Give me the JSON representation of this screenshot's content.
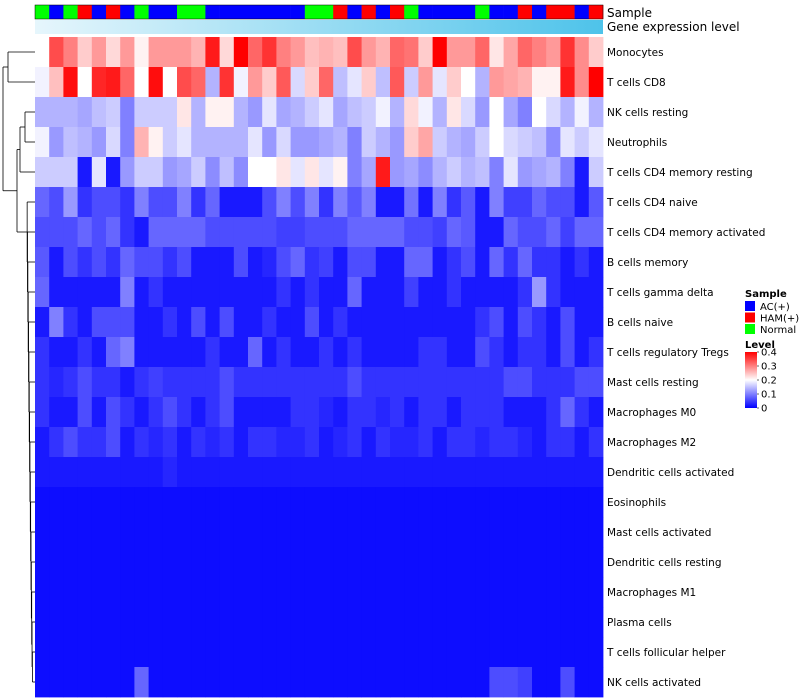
{
  "chart_data": {
    "type": "heatmap",
    "annotation_labels": [
      "Sample",
      "Gene expression level"
    ],
    "sample_groups": [
      "Normal",
      "AC(+)",
      "Normal",
      "HAM(+)",
      "AC(+)",
      "HAM(+)",
      "AC(+)",
      "Normal",
      "AC(+)",
      "AC(+)",
      "Normal",
      "Normal",
      "AC(+)",
      "AC(+)",
      "AC(+)",
      "AC(+)",
      "AC(+)",
      "AC(+)",
      "AC(+)",
      "Normal",
      "Normal",
      "HAM(+)",
      "AC(+)",
      "HAM(+)",
      "AC(+)",
      "HAM(+)",
      "Normal",
      "AC(+)",
      "AC(+)",
      "AC(+)",
      "AC(+)",
      "Normal",
      "AC(+)",
      "AC(+)",
      "HAM(+)",
      "AC(+)",
      "HAM(+)",
      "HAM(+)",
      "AC(+)",
      "HAM(+)"
    ],
    "legend": {
      "sample_title": "Sample",
      "groups": [
        {
          "label": "AC(+)",
          "color": "#0000ff"
        },
        {
          "label": "HAM(+)",
          "color": "#ff0000"
        },
        {
          "label": "Normal",
          "color": "#00ff00"
        }
      ],
      "level_title": "Level",
      "ticks": [
        "0.4",
        "0.3",
        "0.2",
        "0.1",
        "0"
      ]
    },
    "color_scale": {
      "min": 0,
      "mid": 0.2,
      "max": 0.4,
      "low": "#0000ff",
      "midcolor": "#ffffff",
      "high": "#ff0000"
    },
    "rows": [
      {
        "label": "Monocytes",
        "values": [
          0.2,
          0.34,
          0.3,
          0.24,
          0.28,
          0.23,
          0.28,
          0.21,
          0.28,
          0.28,
          0.28,
          0.26,
          0.38,
          0.23,
          0.4,
          0.32,
          0.36,
          0.3,
          0.28,
          0.25,
          0.26,
          0.25,
          0.34,
          0.28,
          0.26,
          0.32,
          0.31,
          0.24,
          0.4,
          0.28,
          0.28,
          0.32,
          0.22,
          0.27,
          0.32,
          0.3,
          0.28,
          0.36,
          0.29,
          0.24
        ]
      },
      {
        "label": "T cells CD8",
        "values": [
          0.19,
          0.25,
          0.39,
          0.2,
          0.37,
          0.38,
          0.32,
          0.2,
          0.39,
          0.2,
          0.34,
          0.32,
          0.14,
          0.36,
          0.19,
          0.28,
          0.24,
          0.33,
          0.17,
          0.24,
          0.32,
          0.15,
          0.18,
          0.24,
          0.15,
          0.33,
          0.16,
          0.28,
          0.18,
          0.24,
          0.2,
          0.14,
          0.28,
          0.27,
          0.26,
          0.21,
          0.21,
          0.38,
          0.29,
          0.4
        ]
      },
      {
        "label": "NK cells resting",
        "values": [
          0.14,
          0.14,
          0.14,
          0.13,
          0.15,
          0.16,
          0.1,
          0.16,
          0.16,
          0.16,
          0.22,
          0.14,
          0.21,
          0.21,
          0.14,
          0.12,
          0.18,
          0.13,
          0.14,
          0.16,
          0.18,
          0.13,
          0.15,
          0.16,
          0.19,
          0.14,
          0.23,
          0.19,
          0.14,
          0.22,
          0.17,
          0.12,
          0.2,
          0.13,
          0.1,
          0.2,
          0.17,
          0.14,
          0.19,
          0.14
        ]
      },
      {
        "label": "Neutrophils",
        "values": [
          0.19,
          0.12,
          0.15,
          0.14,
          0.12,
          0.17,
          0.1,
          0.26,
          0.21,
          0.16,
          0.18,
          0.14,
          0.14,
          0.14,
          0.14,
          0.18,
          0.12,
          0.17,
          0.12,
          0.12,
          0.13,
          0.14,
          0.1,
          0.16,
          0.14,
          0.12,
          0.24,
          0.27,
          0.16,
          0.14,
          0.13,
          0.16,
          0.2,
          0.17,
          0.16,
          0.15,
          0.11,
          0.18,
          0.16,
          0.18
        ]
      },
      {
        "label": "T cells CD4 memory resting",
        "values": [
          0.16,
          0.16,
          0.16,
          0.02,
          0.18,
          0.02,
          0.12,
          0.16,
          0.16,
          0.12,
          0.13,
          0.16,
          0.11,
          0.15,
          0.11,
          0.2,
          0.2,
          0.22,
          0.18,
          0.22,
          0.18,
          0.21,
          0.1,
          0.13,
          0.38,
          0.12,
          0.13,
          0.11,
          0.14,
          0.16,
          0.14,
          0.15,
          0.1,
          0.18,
          0.12,
          0.13,
          0.14,
          0.1,
          0.02,
          0.16
        ]
      },
      {
        "label": "T cells CD4 naive",
        "values": [
          0.08,
          0.06,
          0.12,
          0.04,
          0.06,
          0.06,
          0.04,
          0.1,
          0.06,
          0.06,
          0.1,
          0.04,
          0.08,
          0.02,
          0.02,
          0.02,
          0.06,
          0.1,
          0.06,
          0.1,
          0.04,
          0.1,
          0.07,
          0.1,
          0.02,
          0.02,
          0.09,
          0.02,
          0.1,
          0.04,
          0.07,
          0.02,
          0.1,
          0.05,
          0.05,
          0.08,
          0.06,
          0.06,
          0.02,
          0.07
        ]
      },
      {
        "label": "T cells CD4 memory activated",
        "values": [
          0.06,
          0.06,
          0.06,
          0.08,
          0.06,
          0.08,
          0.04,
          0.02,
          0.08,
          0.08,
          0.08,
          0.08,
          0.06,
          0.06,
          0.06,
          0.06,
          0.06,
          0.05,
          0.05,
          0.06,
          0.06,
          0.06,
          0.08,
          0.08,
          0.08,
          0.08,
          0.06,
          0.06,
          0.05,
          0.08,
          0.07,
          0.02,
          0.02,
          0.08,
          0.06,
          0.06,
          0.08,
          0.05,
          0.08,
          0.08
        ]
      },
      {
        "label": "B cells memory",
        "values": [
          0.07,
          0.02,
          0.06,
          0.04,
          0.06,
          0.04,
          0.08,
          0.06,
          0.06,
          0.04,
          0.06,
          0.02,
          0.02,
          0.02,
          0.06,
          0.02,
          0.03,
          0.06,
          0.08,
          0.04,
          0.05,
          0.02,
          0.06,
          0.06,
          0.02,
          0.02,
          0.08,
          0.08,
          0.02,
          0.04,
          0.06,
          0.02,
          0.08,
          0.04,
          0.08,
          0.04,
          0.04,
          0.02,
          0.04,
          0.02
        ]
      },
      {
        "label": "T cells gamma delta",
        "values": [
          0.08,
          0.02,
          0.02,
          0.02,
          0.02,
          0.02,
          0.1,
          0.02,
          0.04,
          0.02,
          0.02,
          0.02,
          0.02,
          0.02,
          0.02,
          0.02,
          0.02,
          0.04,
          0.02,
          0.04,
          0.02,
          0.02,
          0.08,
          0.02,
          0.02,
          0.02,
          0.05,
          0.02,
          0.02,
          0.04,
          0.02,
          0.02,
          0.02,
          0.02,
          0.04,
          0.12,
          0.04,
          0.02,
          0.02,
          0.02
        ]
      },
      {
        "label": "B cells naive",
        "values": [
          0.02,
          0.1,
          0.04,
          0.02,
          0.06,
          0.06,
          0.06,
          0.02,
          0.02,
          0.04,
          0.02,
          0.06,
          0.02,
          0.06,
          0.02,
          0.02,
          0.04,
          0.02,
          0.02,
          0.06,
          0.02,
          0.04,
          0.02,
          0.02,
          0.02,
          0.02,
          0.02,
          0.02,
          0.02,
          0.02,
          0.02,
          0.04,
          0.06,
          0.02,
          0.06,
          0.04,
          0.02,
          0.06,
          0.02,
          0.02
        ]
      },
      {
        "label": "T cells regulatory  Tregs",
        "values": [
          0.04,
          0.02,
          0.02,
          0.04,
          0.02,
          0.08,
          0.1,
          0.02,
          0.02,
          0.02,
          0.02,
          0.02,
          0.04,
          0.02,
          0.02,
          0.08,
          0.02,
          0.04,
          0.02,
          0.02,
          0.04,
          0.02,
          0.04,
          0.02,
          0.02,
          0.02,
          0.02,
          0.04,
          0.04,
          0.02,
          0.02,
          0.06,
          0.04,
          0.02,
          0.04,
          0.04,
          0.02,
          0.06,
          0.02,
          0.04
        ]
      },
      {
        "label": "Mast cells resting",
        "values": [
          0.04,
          0.03,
          0.04,
          0.06,
          0.04,
          0.04,
          0.02,
          0.04,
          0.05,
          0.04,
          0.04,
          0.04,
          0.04,
          0.06,
          0.04,
          0.04,
          0.04,
          0.04,
          0.04,
          0.04,
          0.04,
          0.04,
          0.06,
          0.04,
          0.04,
          0.04,
          0.04,
          0.04,
          0.04,
          0.04,
          0.04,
          0.04,
          0.04,
          0.06,
          0.06,
          0.04,
          0.04,
          0.04,
          0.06,
          0.06
        ]
      },
      {
        "label": "Macrophages M0",
        "values": [
          0.04,
          0.02,
          0.02,
          0.06,
          0.02,
          0.06,
          0.04,
          0.02,
          0.04,
          0.06,
          0.04,
          0.02,
          0.04,
          0.06,
          0.02,
          0.02,
          0.02,
          0.02,
          0.04,
          0.04,
          0.03,
          0.02,
          0.04,
          0.04,
          0.03,
          0.04,
          0.02,
          0.04,
          0.04,
          0.02,
          0.04,
          0.04,
          0.04,
          0.02,
          0.02,
          0.02,
          0.04,
          0.08,
          0.04,
          0.02
        ]
      },
      {
        "label": "Macrophages M2",
        "values": [
          0.02,
          0.04,
          0.06,
          0.04,
          0.04,
          0.06,
          0.02,
          0.04,
          0.03,
          0.04,
          0.02,
          0.04,
          0.03,
          0.04,
          0.02,
          0.04,
          0.04,
          0.03,
          0.03,
          0.04,
          0.02,
          0.03,
          0.04,
          0.02,
          0.04,
          0.03,
          0.03,
          0.04,
          0.02,
          0.04,
          0.04,
          0.03,
          0.04,
          0.04,
          0.03,
          0.02,
          0.04,
          0.04,
          0.02,
          0.04
        ]
      },
      {
        "label": "Dendritic cells activated",
        "values": [
          0.02,
          0.02,
          0.02,
          0.02,
          0.02,
          0.02,
          0.02,
          0.02,
          0.02,
          0.03,
          0.02,
          0.02,
          0.02,
          0.02,
          0.02,
          0.02,
          0.02,
          0.02,
          0.02,
          0.02,
          0.02,
          0.02,
          0.02,
          0.02,
          0.02,
          0.02,
          0.02,
          0.02,
          0.02,
          0.02,
          0.02,
          0.02,
          0.02,
          0.02,
          0.02,
          0.02,
          0.02,
          0.02,
          0.02,
          0.02
        ]
      },
      {
        "label": "Eosinophils",
        "values": [
          0.01,
          0.01,
          0.01,
          0.01,
          0.01,
          0.01,
          0.01,
          0.01,
          0.01,
          0.01,
          0.01,
          0.01,
          0.01,
          0.01,
          0.01,
          0.01,
          0.01,
          0.01,
          0.01,
          0.01,
          0.01,
          0.01,
          0.01,
          0.01,
          0.01,
          0.01,
          0.01,
          0.01,
          0.01,
          0.01,
          0.01,
          0.01,
          0.01,
          0.01,
          0.01,
          0.01,
          0.01,
          0.01,
          0.01,
          0.01
        ]
      },
      {
        "label": "Mast cells activated",
        "values": [
          0.01,
          0.01,
          0.01,
          0.01,
          0.01,
          0.01,
          0.01,
          0.01,
          0.01,
          0.01,
          0.01,
          0.01,
          0.01,
          0.01,
          0.01,
          0.01,
          0.01,
          0.01,
          0.01,
          0.01,
          0.01,
          0.01,
          0.01,
          0.01,
          0.01,
          0.01,
          0.01,
          0.01,
          0.01,
          0.01,
          0.01,
          0.01,
          0.01,
          0.01,
          0.01,
          0.01,
          0.01,
          0.01,
          0.01,
          0.01
        ]
      },
      {
        "label": "Dendritic cells resting",
        "values": [
          0.01,
          0.01,
          0.01,
          0.01,
          0.01,
          0.01,
          0.01,
          0.01,
          0.01,
          0.01,
          0.01,
          0.01,
          0.01,
          0.01,
          0.01,
          0.01,
          0.01,
          0.01,
          0.01,
          0.01,
          0.01,
          0.01,
          0.01,
          0.01,
          0.01,
          0.01,
          0.01,
          0.01,
          0.01,
          0.01,
          0.01,
          0.01,
          0.01,
          0.01,
          0.01,
          0.01,
          0.01,
          0.01,
          0.01,
          0.01
        ]
      },
      {
        "label": "Macrophages M1",
        "values": [
          0.01,
          0.01,
          0.01,
          0.01,
          0.01,
          0.01,
          0.01,
          0.01,
          0.01,
          0.01,
          0.01,
          0.01,
          0.01,
          0.01,
          0.01,
          0.01,
          0.01,
          0.01,
          0.01,
          0.01,
          0.01,
          0.01,
          0.01,
          0.01,
          0.01,
          0.01,
          0.01,
          0.01,
          0.01,
          0.01,
          0.01,
          0.01,
          0.01,
          0.01,
          0.01,
          0.01,
          0.01,
          0.01,
          0.01,
          0.01
        ]
      },
      {
        "label": "Plasma cells",
        "values": [
          0.01,
          0.01,
          0.01,
          0.01,
          0.01,
          0.01,
          0.01,
          0.01,
          0.01,
          0.01,
          0.01,
          0.01,
          0.01,
          0.01,
          0.01,
          0.01,
          0.01,
          0.01,
          0.01,
          0.01,
          0.01,
          0.01,
          0.01,
          0.01,
          0.01,
          0.01,
          0.01,
          0.01,
          0.01,
          0.01,
          0.01,
          0.01,
          0.01,
          0.01,
          0.01,
          0.01,
          0.01,
          0.01,
          0.01,
          0.01
        ]
      },
      {
        "label": "T cells follicular helper",
        "values": [
          0.01,
          0.01,
          0.01,
          0.01,
          0.01,
          0.01,
          0.01,
          0.01,
          0.01,
          0.01,
          0.01,
          0.01,
          0.01,
          0.01,
          0.01,
          0.01,
          0.01,
          0.01,
          0.01,
          0.01,
          0.01,
          0.01,
          0.01,
          0.01,
          0.01,
          0.01,
          0.01,
          0.01,
          0.01,
          0.01,
          0.01,
          0.01,
          0.01,
          0.01,
          0.01,
          0.01,
          0.01,
          0.01,
          0.01,
          0.01
        ]
      },
      {
        "label": "NK cells activated",
        "values": [
          0.01,
          0.01,
          0.01,
          0.01,
          0.01,
          0.01,
          0.01,
          0.08,
          0.01,
          0.01,
          0.01,
          0.01,
          0.01,
          0.01,
          0.01,
          0.01,
          0.01,
          0.01,
          0.01,
          0.01,
          0.01,
          0.01,
          0.01,
          0.01,
          0.01,
          0.01,
          0.01,
          0.01,
          0.01,
          0.01,
          0.01,
          0.01,
          0.06,
          0.06,
          0.05,
          0.01,
          0.01,
          0.06,
          0.01,
          0.01
        ]
      }
    ]
  }
}
